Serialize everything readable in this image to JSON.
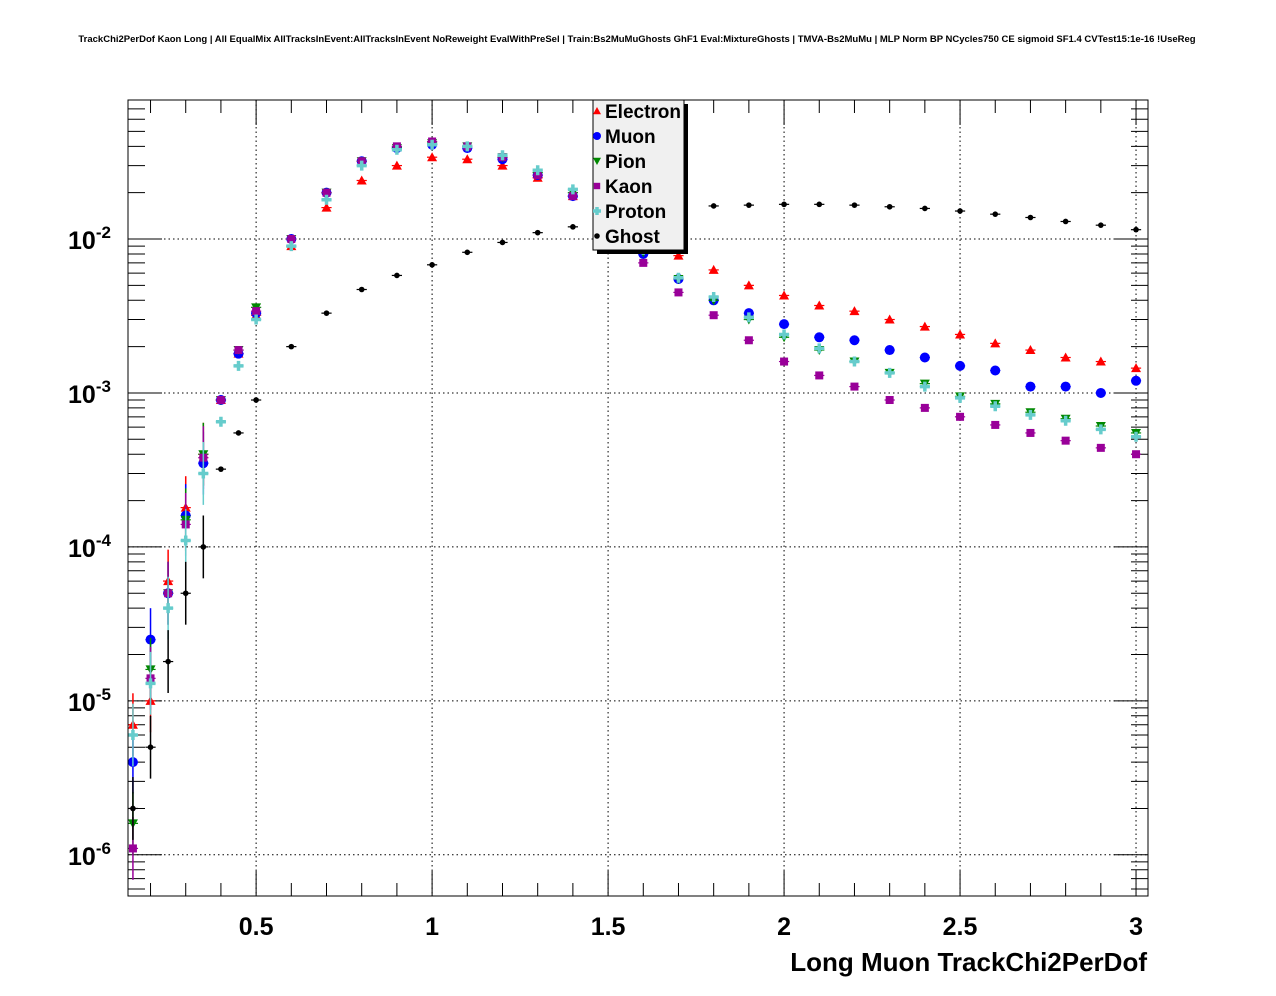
{
  "chart_data": {
    "type": "scatter",
    "title": "TrackChi2PerDof Kaon Long | All EqualMix AllTracksInEvent:AllTracksInEvent NoReweight EvalWithPreSel | Train:Bs2MuMuGhosts GhF1 Eval:MixtureGhosts | TMVA-Bs2MuMu | MLP Norm BP NCycles750 CE sigmoid SF1.4 CVTest15:1e-16 !UseReg",
    "xlabel": "Long Muon TrackChi2PerDof",
    "ylabel": "",
    "xlim": [
      0.136,
      3.034
    ],
    "ylim": [
      5.4e-07,
      0.08
    ],
    "yscale": "log",
    "grid": true,
    "legend_position": "top-center",
    "x_ticks": [
      "0.5",
      "1",
      "1.5",
      "2",
      "2.5",
      "3"
    ],
    "x_tick_values": [
      0.5,
      1,
      1.5,
      2,
      2.5,
      3
    ],
    "y_ticks": [
      {
        "base": "10",
        "exp": "-2",
        "value": 0.01
      },
      {
        "base": "10",
        "exp": "-3",
        "value": 0.001
      },
      {
        "base": "10",
        "exp": "-4",
        "value": 0.0001
      },
      {
        "base": "10",
        "exp": "-5",
        "value": 1e-05
      },
      {
        "base": "10",
        "exp": "-6",
        "value": 1e-06
      }
    ],
    "x": [
      0.15,
      0.2,
      0.25,
      0.3,
      0.35,
      0.4,
      0.45,
      0.5,
      0.6,
      0.7,
      0.8,
      0.9,
      1.0,
      1.1,
      1.2,
      1.3,
      1.4,
      1.5,
      1.6,
      1.7,
      1.8,
      1.9,
      2.0,
      2.1,
      2.2,
      2.3,
      2.4,
      2.5,
      2.6,
      2.7,
      2.8,
      2.9,
      3.0
    ],
    "series": [
      {
        "name": "Electron",
        "color": "#ff0000",
        "marker": "triangle-up",
        "values": [
          7e-06,
          1e-05,
          6e-05,
          0.00018,
          0.0004,
          0.0009,
          0.0018,
          0.0032,
          0.009,
          0.016,
          0.024,
          0.03,
          0.034,
          0.033,
          0.03,
          0.025,
          0.019,
          0.0145,
          0.01,
          0.0078,
          0.0063,
          0.005,
          0.0043,
          0.0037,
          0.0034,
          0.003,
          0.0027,
          0.0024,
          0.0021,
          0.0019,
          0.0017,
          0.0016,
          0.00145
        ]
      },
      {
        "name": "Muon",
        "color": "#0000ff",
        "marker": "circle",
        "values": [
          4e-06,
          2.5e-05,
          5e-05,
          0.00016,
          0.00035,
          0.0009,
          0.0018,
          0.0033,
          0.01,
          0.02,
          0.032,
          0.039,
          0.041,
          0.039,
          0.033,
          0.026,
          0.019,
          0.013,
          0.008,
          0.0055,
          0.004,
          0.0033,
          0.0028,
          0.0023,
          0.0022,
          0.0019,
          0.0017,
          0.0015,
          0.0014,
          0.0011,
          0.0011,
          0.001,
          0.0012
        ]
      },
      {
        "name": "Pion",
        "color": "#008800",
        "marker": "triangle-down",
        "values": [
          1.6e-06,
          1.6e-05,
          5e-05,
          0.00015,
          0.0004,
          0.0009,
          0.0019,
          0.0036,
          0.01,
          0.02,
          0.032,
          0.039,
          0.042,
          0.04,
          0.034,
          0.027,
          0.02,
          0.0135,
          0.0082,
          0.0055,
          0.004,
          0.003,
          0.0023,
          0.0019,
          0.0016,
          0.00135,
          0.00115,
          0.00095,
          0.00085,
          0.00075,
          0.00068,
          0.00061,
          0.00055
        ]
      },
      {
        "name": "Kaon",
        "color": "#990099",
        "marker": "square",
        "values": [
          1.1e-06,
          1.4e-05,
          5e-05,
          0.00014,
          0.00038,
          0.0009,
          0.0019,
          0.0034,
          0.01,
          0.02,
          0.032,
          0.04,
          0.043,
          0.04,
          0.034,
          0.026,
          0.019,
          0.012,
          0.007,
          0.0045,
          0.0032,
          0.0022,
          0.0016,
          0.0013,
          0.0011,
          0.0009,
          0.0008,
          0.0007,
          0.00062,
          0.00055,
          0.00049,
          0.00044,
          0.0004
        ]
      },
      {
        "name": "Proton",
        "color": "#66cccc",
        "marker": "cross",
        "values": [
          6e-06,
          1.3e-05,
          4e-05,
          0.00011,
          0.0003,
          0.00065,
          0.0015,
          0.003,
          0.009,
          0.018,
          0.03,
          0.038,
          0.041,
          0.04,
          0.035,
          0.028,
          0.021,
          0.014,
          0.0085,
          0.0056,
          0.0042,
          0.0031,
          0.0024,
          0.00195,
          0.0016,
          0.00135,
          0.0011,
          0.00093,
          0.00082,
          0.00072,
          0.00066,
          0.00058,
          0.00052
        ]
      },
      {
        "name": "Ghost",
        "color": "#000000",
        "marker": "dot",
        "values": [
          2e-06,
          5e-06,
          1.8e-05,
          5e-05,
          0.0001,
          0.00032,
          0.00055,
          0.0009,
          0.002,
          0.0033,
          0.0047,
          0.0058,
          0.0068,
          0.0082,
          0.0095,
          0.011,
          0.012,
          0.0135,
          0.015,
          0.0158,
          0.0164,
          0.0166,
          0.0168,
          0.0168,
          0.0166,
          0.0162,
          0.0158,
          0.0152,
          0.0145,
          0.0138,
          0.013,
          0.0123,
          0.0115
        ]
      }
    ]
  }
}
